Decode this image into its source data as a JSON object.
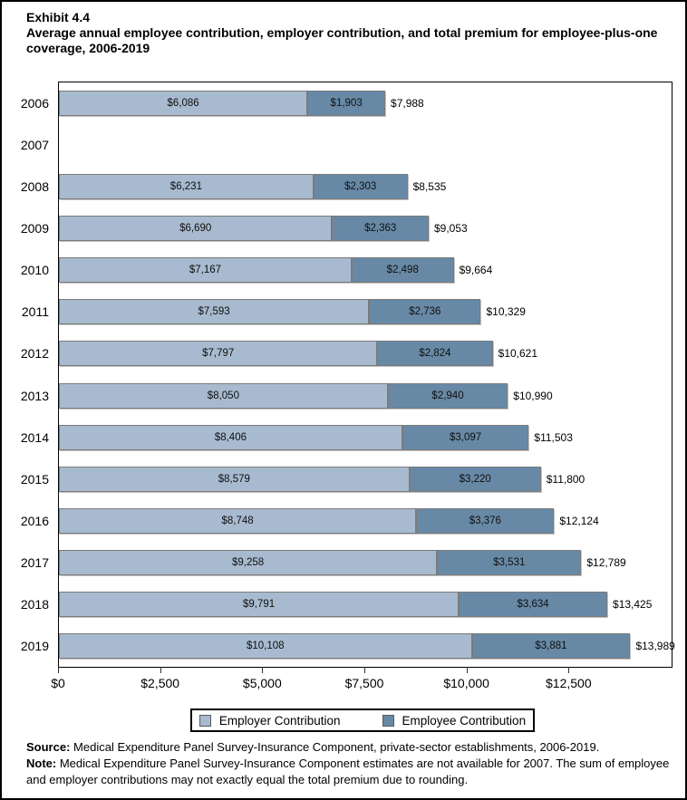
{
  "header": {
    "exhibit": "Exhibit 4.4",
    "title": "Average annual employee contribution, employer contribution, and total premium for employee-plus-one coverage, 2006-2019"
  },
  "chart_data": {
    "type": "bar",
    "orientation": "horizontal",
    "stacked": true,
    "title": "Average annual employee contribution, employer contribution, and total premium for employee-plus-one coverage, 2006-2019",
    "categories": [
      "2006",
      "2007",
      "2008",
      "2009",
      "2010",
      "2011",
      "2012",
      "2013",
      "2014",
      "2015",
      "2016",
      "2017",
      "2018",
      "2019"
    ],
    "series": [
      {
        "name": "Employer Contribution",
        "color": "#a7bacf",
        "values": [
          6086,
          null,
          6231,
          6690,
          7167,
          7593,
          7797,
          8050,
          8406,
          8579,
          8748,
          9258,
          9791,
          10108
        ]
      },
      {
        "name": "Employee Contribution",
        "color": "#6789a6",
        "values": [
          1903,
          null,
          2303,
          2363,
          2498,
          2736,
          2824,
          2940,
          3097,
          3220,
          3376,
          3531,
          3634,
          3881
        ]
      }
    ],
    "totals": [
      7988,
      null,
      8535,
      9053,
      9664,
      10329,
      10621,
      10990,
      11503,
      11800,
      12124,
      12789,
      13425,
      13989
    ],
    "value_prefix": "$",
    "xlim": [
      0,
      15000
    ],
    "xticks": [
      {
        "value": 0,
        "label": "$0"
      },
      {
        "value": 2500,
        "label": "$2,500"
      },
      {
        "value": 5000,
        "label": "$5,000"
      },
      {
        "value": 7500,
        "label": "$7,500"
      },
      {
        "value": 10000,
        "label": "$10,000"
      },
      {
        "value": 12500,
        "label": "$12,500"
      }
    ],
    "grid": false,
    "legend_position": "bottom",
    "note": "No data shown for 2007"
  },
  "legend": {
    "items": [
      {
        "label": "Employer Contribution",
        "color": "#a7bacf"
      },
      {
        "label": "Employee Contribution",
        "color": "#6789a6"
      }
    ]
  },
  "footnotes": {
    "source_label": "Source:",
    "source_text": "Medical Expenditure Panel Survey-Insurance Component, private-sector establishments, 2006-2019.",
    "note_label": "Note:",
    "note_text": "Medical Expenditure Panel Survey-Insurance Component estimates are not available for 2007. The sum of employee and employer contributions may not exactly equal the total premium due to rounding."
  }
}
